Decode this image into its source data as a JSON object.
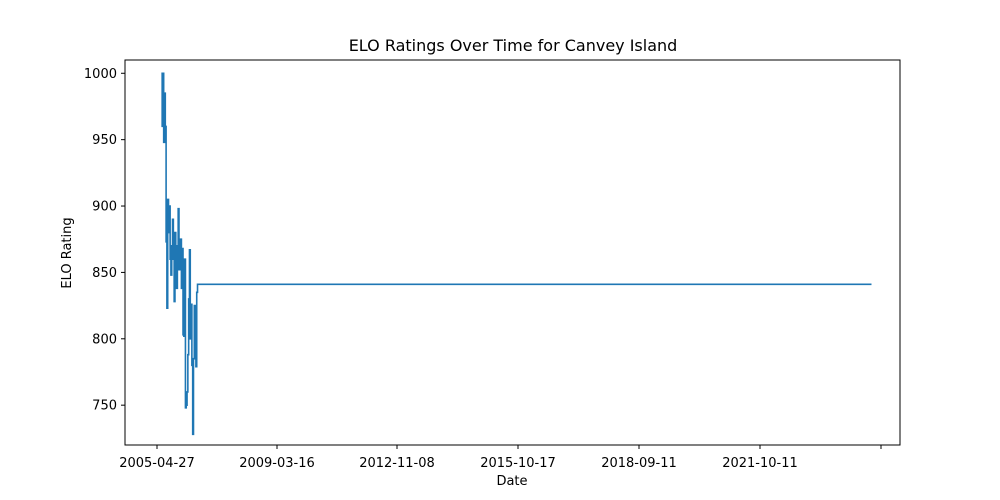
{
  "chart_data": {
    "type": "line",
    "title": "ELO Ratings Over Time for Canvey Island",
    "xlabel": "Date",
    "ylabel": "ELO Rating",
    "x_ticks": [
      "2005-04-27",
      "2009-03-16",
      "2012-11-08",
      "2015-10-17",
      "2018-09-11",
      "2021-10-11",
      ""
    ],
    "y_ticks": [
      750,
      800,
      850,
      900,
      950,
      1000
    ],
    "xlim": [
      "2004-05-01",
      "2025-05-25"
    ],
    "ylim": [
      720,
      1010
    ],
    "color": "#1f77b4",
    "grid": false,
    "series": [
      {
        "x": [
          "2005-04-27",
          "2005-05-05",
          "2005-05-12",
          "2005-05-20",
          "2005-05-28",
          "2005-06-05",
          "2005-06-13",
          "2005-06-21",
          "2005-06-29",
          "2005-07-07",
          "2005-07-15",
          "2005-07-23",
          "2005-07-31",
          "2005-08-08",
          "2005-08-16",
          "2005-08-24",
          "2005-09-01",
          "2005-09-09",
          "2005-09-17",
          "2005-09-25",
          "2005-10-03",
          "2005-10-11",
          "2005-10-19",
          "2005-10-27",
          "2005-11-04",
          "2005-11-12",
          "2005-11-20",
          "2005-11-28",
          "2005-12-06",
          "2005-12-14",
          "2005-12-22",
          "2005-12-30",
          "2006-01-07",
          "2006-01-15",
          "2006-01-23",
          "2006-01-31",
          "2006-02-08",
          "2006-02-16",
          "2006-02-24",
          "2006-03-04",
          "2006-03-12",
          "2006-03-20",
          "2006-03-28",
          "2006-04-05",
          "2006-04-13",
          "2006-04-21",
          "2006-04-29",
          "2006-05-07",
          "2006-05-15",
          "2006-05-23",
          "2006-05-31",
          "2006-06-08",
          "2006-06-16",
          "2006-06-24",
          "2006-07-02",
          "2006-07-10",
          "2006-07-18",
          "2006-07-26",
          "2006-08-03",
          "2006-08-11",
          "2006-08-19",
          "2006-08-27",
          "2006-09-04",
          "2006-09-12",
          "2006-09-20",
          "2024-08-15"
        ],
        "y": [
          1000,
          960,
          1000,
          948,
          985,
          960,
          873,
          823,
          905,
          880,
          900,
          860,
          848,
          870,
          890,
          860,
          828,
          880,
          848,
          838,
          870,
          898,
          852,
          860,
          875,
          838,
          868,
          803,
          802,
          860,
          748,
          750,
          760,
          788,
          830,
          867,
          800,
          826,
          780,
          728,
          785,
          825,
          800,
          779,
          835,
          841,
          841,
          841,
          841,
          841,
          841,
          841,
          841,
          841,
          841,
          841,
          841,
          841,
          841,
          841,
          841,
          841,
          841,
          841,
          841,
          841
        ]
      }
    ]
  }
}
